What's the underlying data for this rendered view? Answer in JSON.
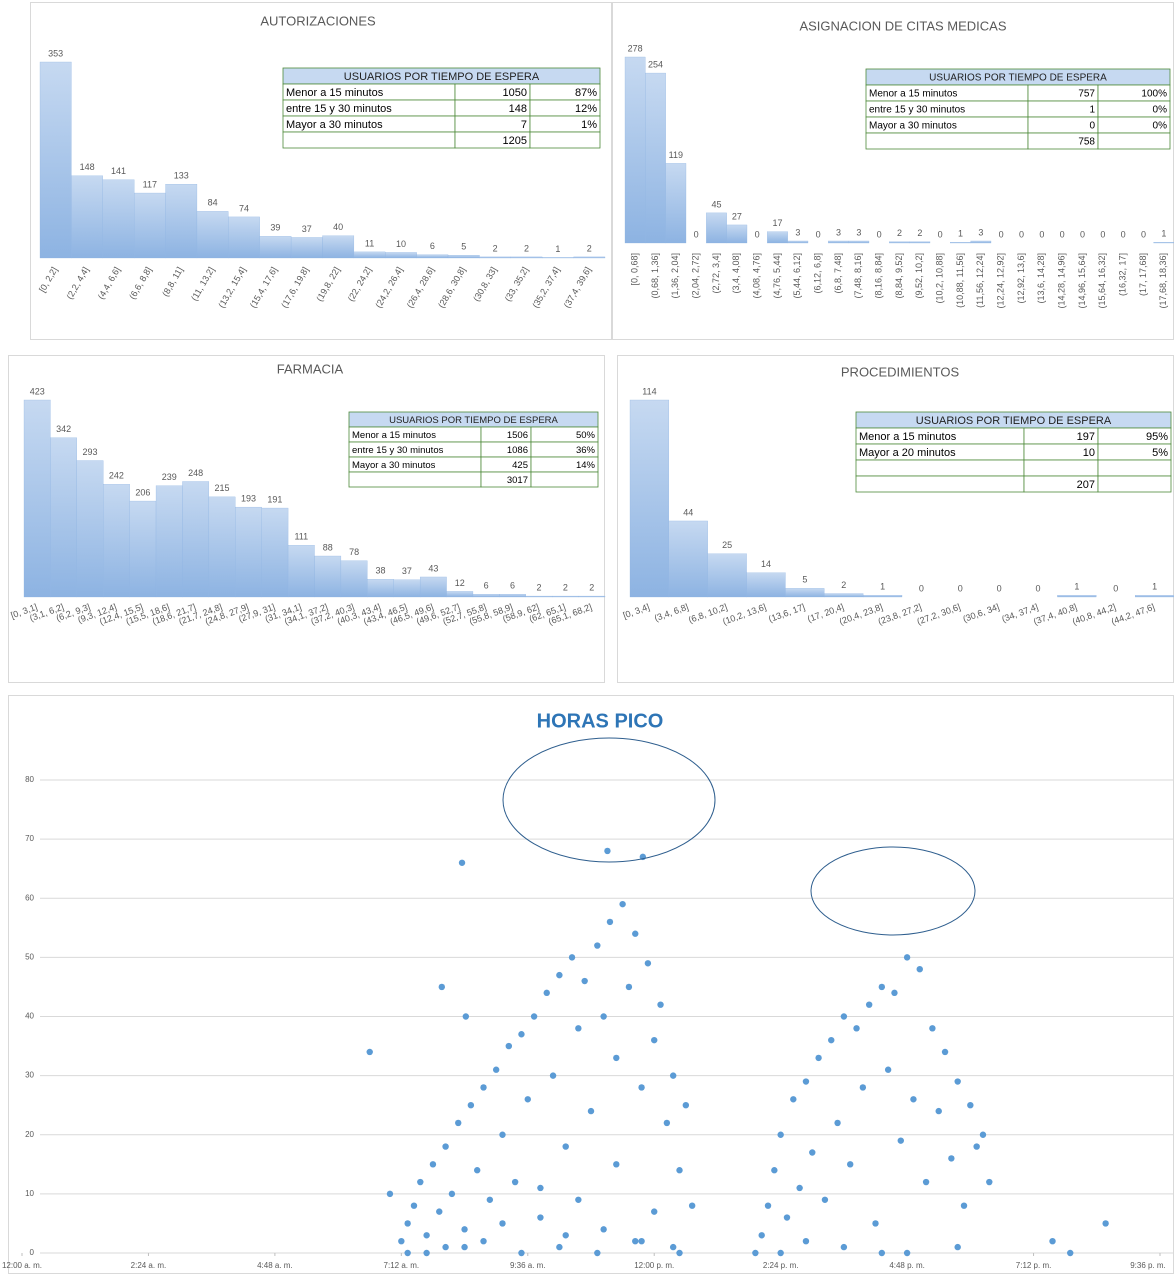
{
  "chart_data": [
    {
      "type": "bar",
      "title": "AUTORIZACIONES",
      "color": "#8db3e2",
      "categories": [
        "[0, 2,2]",
        "(2,2, 4,4]",
        "(4,4, 6,6]",
        "(6,6, 8,8]",
        "(8,8, 11]",
        "(11, 13,2]",
        "(13,2, 15,4]",
        "(15,4, 17,6]",
        "(17,6, 19,8]",
        "(19,8, 22]",
        "(22, 24,2]",
        "(24,2, 26,4]",
        "(26,4, 28,6]",
        "(28,6, 30,8]",
        "(30,8, 33]",
        "(33, 35,2]",
        "(35,2, 37,4]",
        "(37,4, 39,6]"
      ],
      "values": [
        353,
        148,
        141,
        117,
        133,
        84,
        74,
        39,
        37,
        40,
        11,
        10,
        6,
        5,
        2,
        2,
        1,
        2
      ],
      "table": {
        "header": "USUARIOS POR TIEMPO DE ESPERA",
        "rows": [
          [
            "Menor a 15 minutos",
            1050,
            "87%"
          ],
          [
            "entre 15 y 30 minutos",
            148,
            "12%"
          ],
          [
            "Mayor a 30 minutos",
            7,
            "1%"
          ],
          [
            null,
            1205,
            null
          ]
        ]
      }
    },
    {
      "type": "bar",
      "title": "ASIGNACION DE CITAS MEDICAS",
      "color": "#8db3e2",
      "categories": [
        "[0, 0,68]",
        "(0,68, 1,36]",
        "(1,36, 2,04]",
        "(2,04, 2,72]",
        "(2,72, 3,4]",
        "(3,4, 4,08]",
        "(4,08, 4,76]",
        "(4,76, 5,44]",
        "(5,44, 6,12]",
        "(6,12, 6,8]",
        "(6,8, 7,48]",
        "(7,48, 8,16]",
        "(8,16, 8,84]",
        "(8,84, 9,52]",
        "(9,52, 10,2]",
        "(10,2, 10,88]",
        "(10,88, 11,56]",
        "(11,56, 12,24]",
        "(12,24, 12,92]",
        "(12,92, 13,6]",
        "(13,6, 14,28]",
        "(14,28, 14,96]",
        "(14,96, 15,64]",
        "(15,64, 16,32]",
        "(16,32, 17]",
        "(17, 17,68]",
        "(17,68, 18,36]"
      ],
      "values": [
        278,
        254,
        119,
        0,
        45,
        27,
        0,
        17,
        3,
        0,
        3,
        3,
        0,
        2,
        2,
        0,
        1,
        3,
        0,
        0,
        0,
        0,
        0,
        0,
        0,
        0,
        1
      ],
      "table": {
        "header": "USUARIOS POR TIEMPO DE ESPERA",
        "rows": [
          [
            "Menor a 15 minutos",
            757,
            "100%"
          ],
          [
            "entre 15 y 30  minutos",
            1,
            "0%"
          ],
          [
            "Mayor a 30 minutos",
            0,
            "0%"
          ],
          [
            null,
            758,
            null
          ]
        ]
      }
    },
    {
      "type": "bar",
      "title": "FARMACIA",
      "color": "#8db3e2",
      "categories": [
        "[0, 3,1]",
        "(3,1, 6,2]",
        "(6,2, 9,3]",
        "(9,3, 12,4]",
        "(12,4, 15,5]",
        "(15,5, 18,6]",
        "(18,6, 21,7]",
        "(21,7, 24,8]",
        "(24,8, 27,9]",
        "(27,9, 31]",
        "(31, 34,1]",
        "(34,1, 37,2]",
        "(37,2, 40,3]",
        "(40,3, 43,4]",
        "(43,4, 46,5]",
        "(46,5, 49,6]",
        "(49,6, 52,7]",
        "(52,7, 55,8]",
        "(55,8, 58,9]",
        "(58,9, 62]",
        "(62, 65,1]",
        "(65,1, 68,2]"
      ],
      "values": [
        423,
        342,
        293,
        242,
        206,
        239,
        248,
        215,
        193,
        191,
        111,
        88,
        78,
        38,
        37,
        43,
        12,
        6,
        6,
        2,
        2,
        2
      ],
      "table": {
        "header": "USUARIOS POR TIEMPO DE ESPERA",
        "rows": [
          [
            "Menor a 15 minutos",
            1506,
            "50%"
          ],
          [
            "entre 15 y 30 minutos",
            1086,
            "36%"
          ],
          [
            "Mayor a 30 minutos",
            425,
            "14%"
          ],
          [
            null,
            3017,
            null
          ]
        ]
      }
    },
    {
      "type": "bar",
      "title": "PROCEDIMIENTOS",
      "color": "#8db3e2",
      "categories": [
        "[0, 3,4]",
        "(3,4, 6,8]",
        "(6,8, 10,2]",
        "(10,2, 13,6]",
        "(13,6, 17]",
        "(17, 20,4]",
        "(20,4, 23,8]",
        "(23,8, 27,2]",
        "(27,2, 30,6]",
        "(30,6, 34]",
        "(34, 37,4]",
        "(37,4, 40,8]",
        "(40,8, 44,2]",
        "(44,2, 47,6]"
      ],
      "values": [
        114,
        44,
        25,
        14,
        5,
        2,
        1,
        0,
        0,
        0,
        0,
        1,
        0,
        1
      ],
      "table": {
        "header": "USUARIOS POR TIEMPO DE ESPERA",
        "rows": [
          [
            "Menor a 15 minutos",
            197,
            "95%"
          ],
          [
            "Mayor a 20  minutos",
            10,
            "5%"
          ],
          [
            null,
            null,
            null
          ],
          [
            null,
            207,
            null
          ]
        ]
      }
    },
    {
      "type": "scatter",
      "title": "HORAS PICO",
      "color": "#5b9bd5",
      "grid": true,
      "xlim": [
        0,
        0.9
      ],
      "ylim": [
        0,
        80
      ],
      "xticks": [
        {
          "value": 0,
          "label": "12:00 a. m."
        },
        {
          "value": 0.1,
          "label": "2:24 a. m."
        },
        {
          "value": 0.2,
          "label": "4:48 a. m."
        },
        {
          "value": 0.3,
          "label": "7:12 a. m."
        },
        {
          "value": 0.4,
          "label": "9:36 a. m."
        },
        {
          "value": 0.5,
          "label": "12:00 p. m."
        },
        {
          "value": 0.6,
          "label": "2:24 p. m."
        },
        {
          "value": 0.7,
          "label": "4:48 p. m."
        },
        {
          "value": 0.8,
          "label": "7:12 p. m."
        },
        {
          "value": 0.9,
          "label": "9:36 p. m."
        }
      ],
      "yticks": [
        0,
        10,
        20,
        30,
        40,
        50,
        60,
        70,
        80
      ],
      "x": [
        0.3,
        0.305,
        0.31,
        0.315,
        0.32,
        0.325,
        0.33,
        0.335,
        0.34,
        0.345,
        0.35,
        0.355,
        0.36,
        0.365,
        0.37,
        0.375,
        0.38,
        0.385,
        0.39,
        0.395,
        0.4,
        0.405,
        0.41,
        0.415,
        0.42,
        0.425,
        0.43,
        0.435,
        0.44,
        0.445,
        0.45,
        0.455,
        0.46,
        0.465,
        0.47,
        0.475,
        0.48,
        0.485,
        0.49,
        0.495,
        0.5,
        0.505,
        0.51,
        0.515,
        0.52,
        0.525,
        0.53,
        0.305,
        0.335,
        0.365,
        0.395,
        0.425,
        0.455,
        0.485,
        0.515,
        0.38,
        0.41,
        0.44,
        0.47,
        0.5,
        0.585,
        0.59,
        0.595,
        0.6,
        0.605,
        0.61,
        0.615,
        0.62,
        0.625,
        0.63,
        0.635,
        0.64,
        0.645,
        0.65,
        0.655,
        0.66,
        0.665,
        0.67,
        0.675,
        0.68,
        0.685,
        0.69,
        0.695,
        0.7,
        0.705,
        0.71,
        0.715,
        0.72,
        0.725,
        0.73,
        0.735,
        0.74,
        0.745,
        0.75,
        0.755,
        0.76,
        0.765,
        0.6,
        0.65,
        0.7,
        0.275,
        0.291,
        0.332,
        0.348,
        0.351,
        0.463,
        0.491,
        0.58,
        0.815,
        0.829,
        0.857,
        0.32,
        0.35,
        0.62,
        0.68,
        0.74,
        0.43,
        0.46,
        0.49,
        0.52
      ],
      "values": [
        2,
        5,
        8,
        12,
        3,
        15,
        7,
        18,
        10,
        22,
        4,
        25,
        14,
        28,
        9,
        31,
        20,
        35,
        12,
        37,
        26,
        40,
        6,
        44,
        30,
        47,
        18,
        50,
        38,
        46,
        24,
        52,
        40,
        56,
        33,
        59,
        45,
        54,
        28,
        49,
        36,
        42,
        22,
        30,
        14,
        25,
        8,
        0,
        1,
        2,
        0,
        1,
        0,
        2,
        1,
        5,
        11,
        9,
        15,
        7,
        3,
        8,
        14,
        20,
        6,
        26,
        11,
        29,
        17,
        33,
        9,
        36,
        22,
        40,
        15,
        38,
        28,
        42,
        5,
        45,
        31,
        44,
        19,
        50,
        26,
        48,
        12,
        38,
        24,
        34,
        16,
        29,
        8,
        25,
        18,
        20,
        12,
        0,
        1,
        0,
        34,
        10,
        45,
        66,
        40,
        68,
        67,
        0,
        2,
        0,
        5,
        0,
        1,
        2,
        0,
        1,
        3,
        4,
        2,
        0
      ]
    }
  ]
}
